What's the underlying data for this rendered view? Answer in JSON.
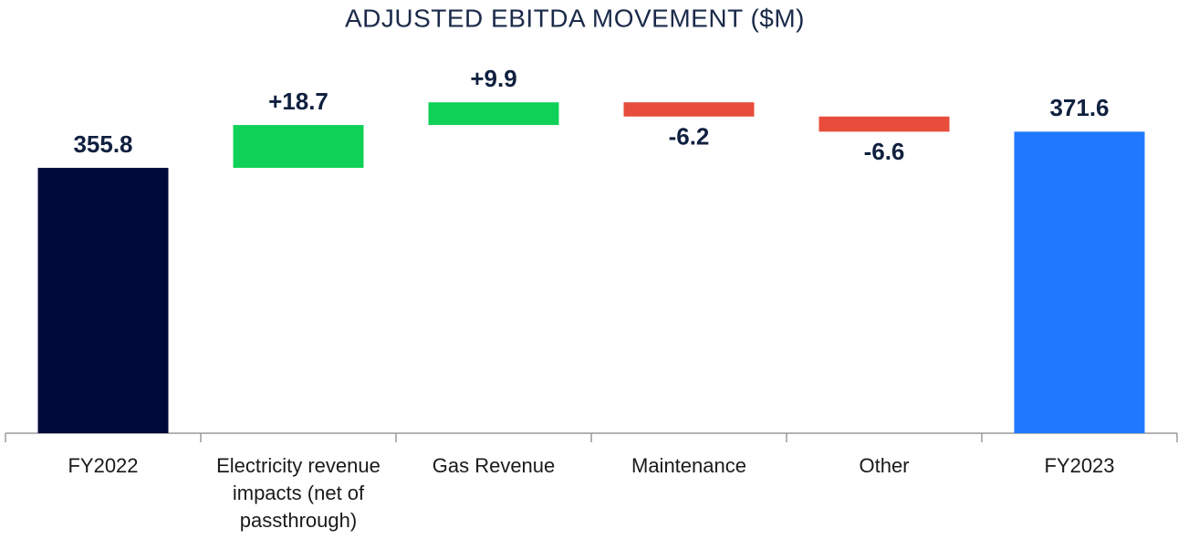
{
  "chart_data": {
    "type": "waterfall",
    "title": "ADJUSTED EBITDA MOVEMENT ($M)",
    "categories": [
      "FY2022",
      "Electricity revenue impacts (net of passthrough)",
      "Gas Revenue",
      "Maintenance",
      "Other",
      "FY2023"
    ],
    "values": [
      355.8,
      18.7,
      9.9,
      -6.2,
      -6.6,
      371.6
    ],
    "value_labels": [
      "355.8",
      "+18.7",
      "+9.9",
      "-6.2",
      "-6.6",
      "371.6"
    ],
    "measure": [
      "total",
      "relative",
      "relative",
      "relative",
      "relative",
      "total"
    ],
    "colors": [
      "#000a3a",
      "#10d157",
      "#10d157",
      "#e84c3a",
      "#e84c3a",
      "#1f78ff"
    ],
    "ylim": [
      240,
      400
    ]
  }
}
